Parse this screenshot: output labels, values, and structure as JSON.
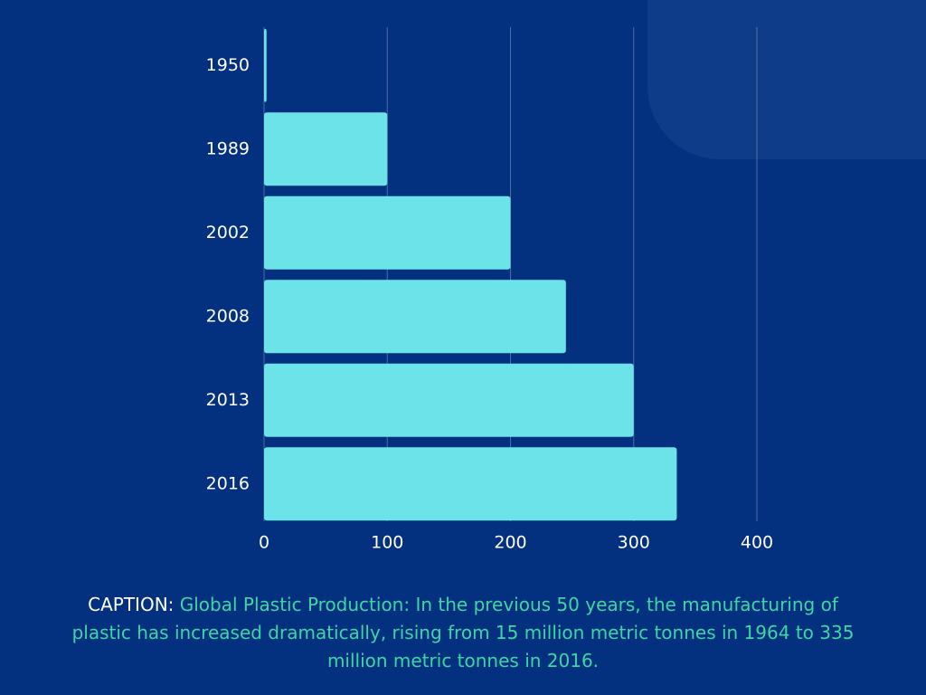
{
  "chart_data": {
    "type": "barh",
    "categories": [
      "1950",
      "1989",
      "2002",
      "2008",
      "2013",
      "2016"
    ],
    "values": [
      2,
      100,
      200,
      245,
      300,
      335
    ],
    "color": "#6be3e9",
    "xlim": [
      0,
      400
    ],
    "xticks": [
      0,
      100,
      200,
      300,
      400
    ],
    "grid": true
  },
  "caption": {
    "label": "CAPTION:",
    "text": "Global Plastic Production: In the previous 50 years, the manufacturing of plastic has increased dramatically, rising from 15 million metric tonnes in 1964 to 335 million metric tonnes in 2016."
  }
}
